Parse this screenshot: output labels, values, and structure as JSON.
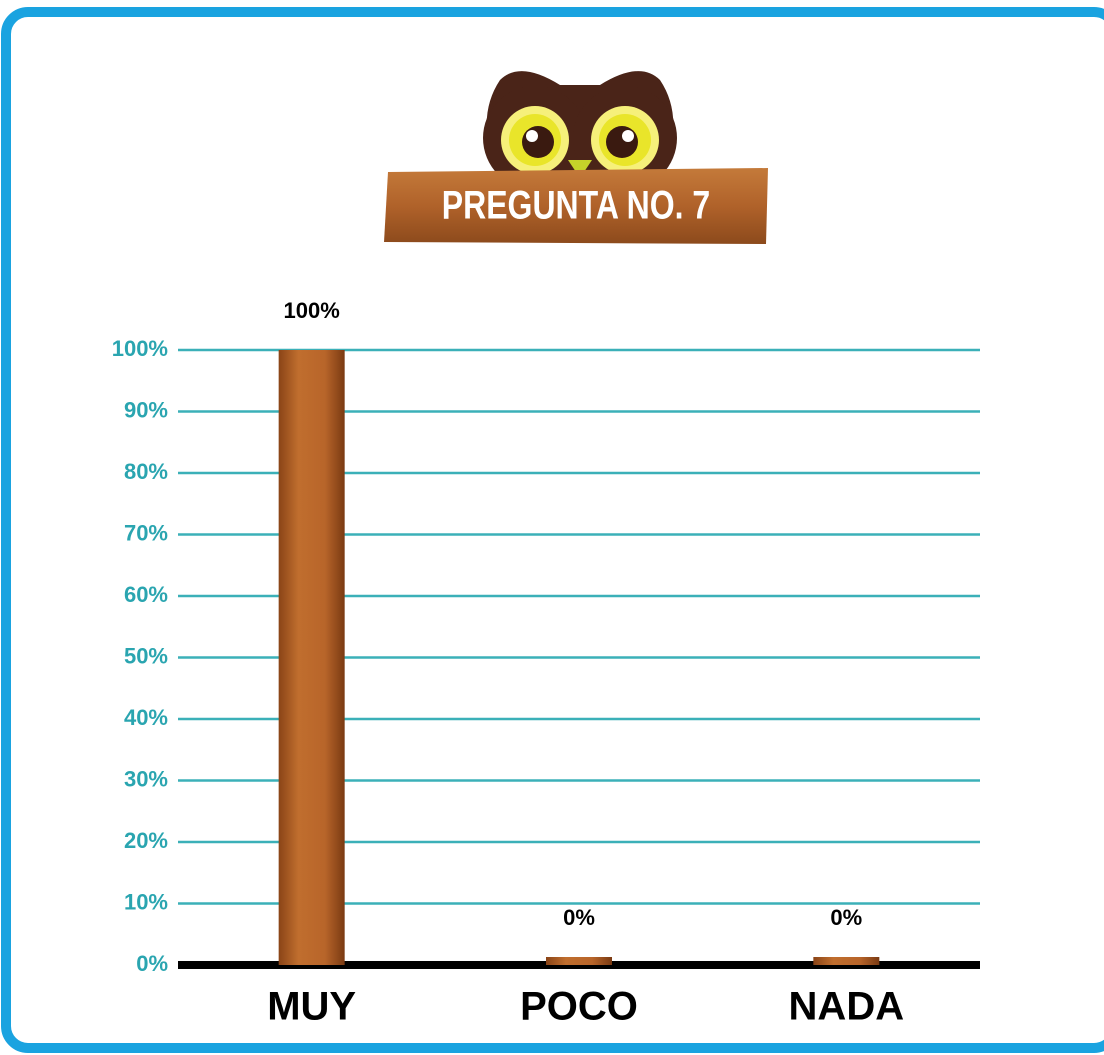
{
  "chart_data": {
    "type": "bar",
    "title": "PREGUNTA NO. 7",
    "categories": [
      "MUY",
      "POCO",
      "NADA"
    ],
    "values": [
      100,
      0,
      0
    ],
    "value_labels": [
      "100%",
      "0%",
      "0%"
    ],
    "color": "#b8652a",
    "ylim": [
      0,
      100
    ],
    "yticks": [
      {
        "value": 0,
        "label": "0%"
      },
      {
        "value": 10,
        "label": "10%"
      },
      {
        "value": 20,
        "label": "20%"
      },
      {
        "value": 30,
        "label": "30%"
      },
      {
        "value": 40,
        "label": "40%"
      },
      {
        "value": 50,
        "label": "50%"
      },
      {
        "value": 60,
        "label": "60%"
      },
      {
        "value": 70,
        "label": "70%"
      },
      {
        "value": 80,
        "label": "80%"
      },
      {
        "value": 90,
        "label": "90%"
      },
      {
        "value": 100,
        "label": "100%"
      }
    ],
    "grid": true
  }
}
